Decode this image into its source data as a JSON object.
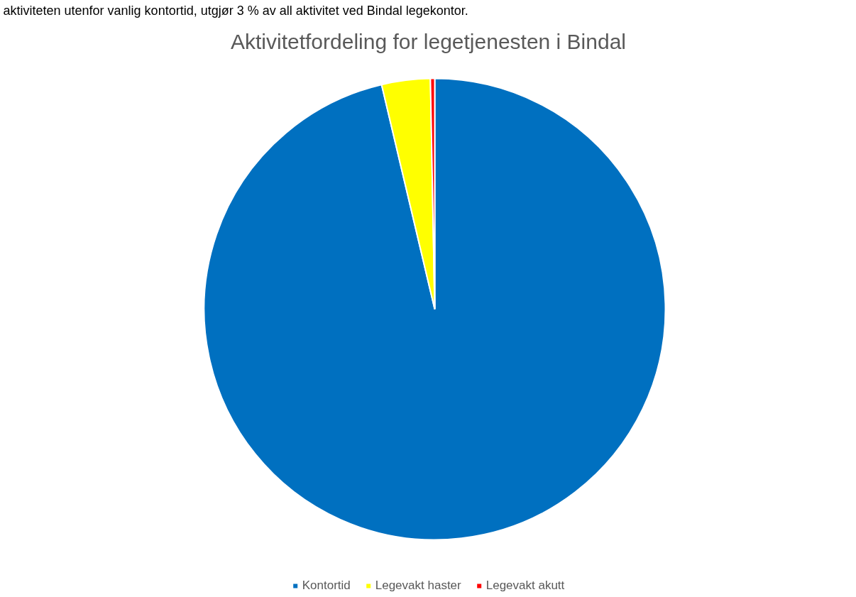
{
  "chart_data": {
    "type": "pie",
    "title": "Aktivitetfordeling for legetjenesten i Bindal",
    "annotations": [
      "aktiviteten utenfor vanlig kontortid, utgjør 3 % av all aktivitet ved Bindal legekontor."
    ],
    "categories": [
      "Kontortid",
      "Legevakt haster",
      "Legevakt akutt"
    ],
    "values": [
      96.3,
      3.4,
      0.3
    ],
    "colors": [
      "#0070c0",
      "#ffff00",
      "#ff0000"
    ],
    "legend": "bottom"
  }
}
